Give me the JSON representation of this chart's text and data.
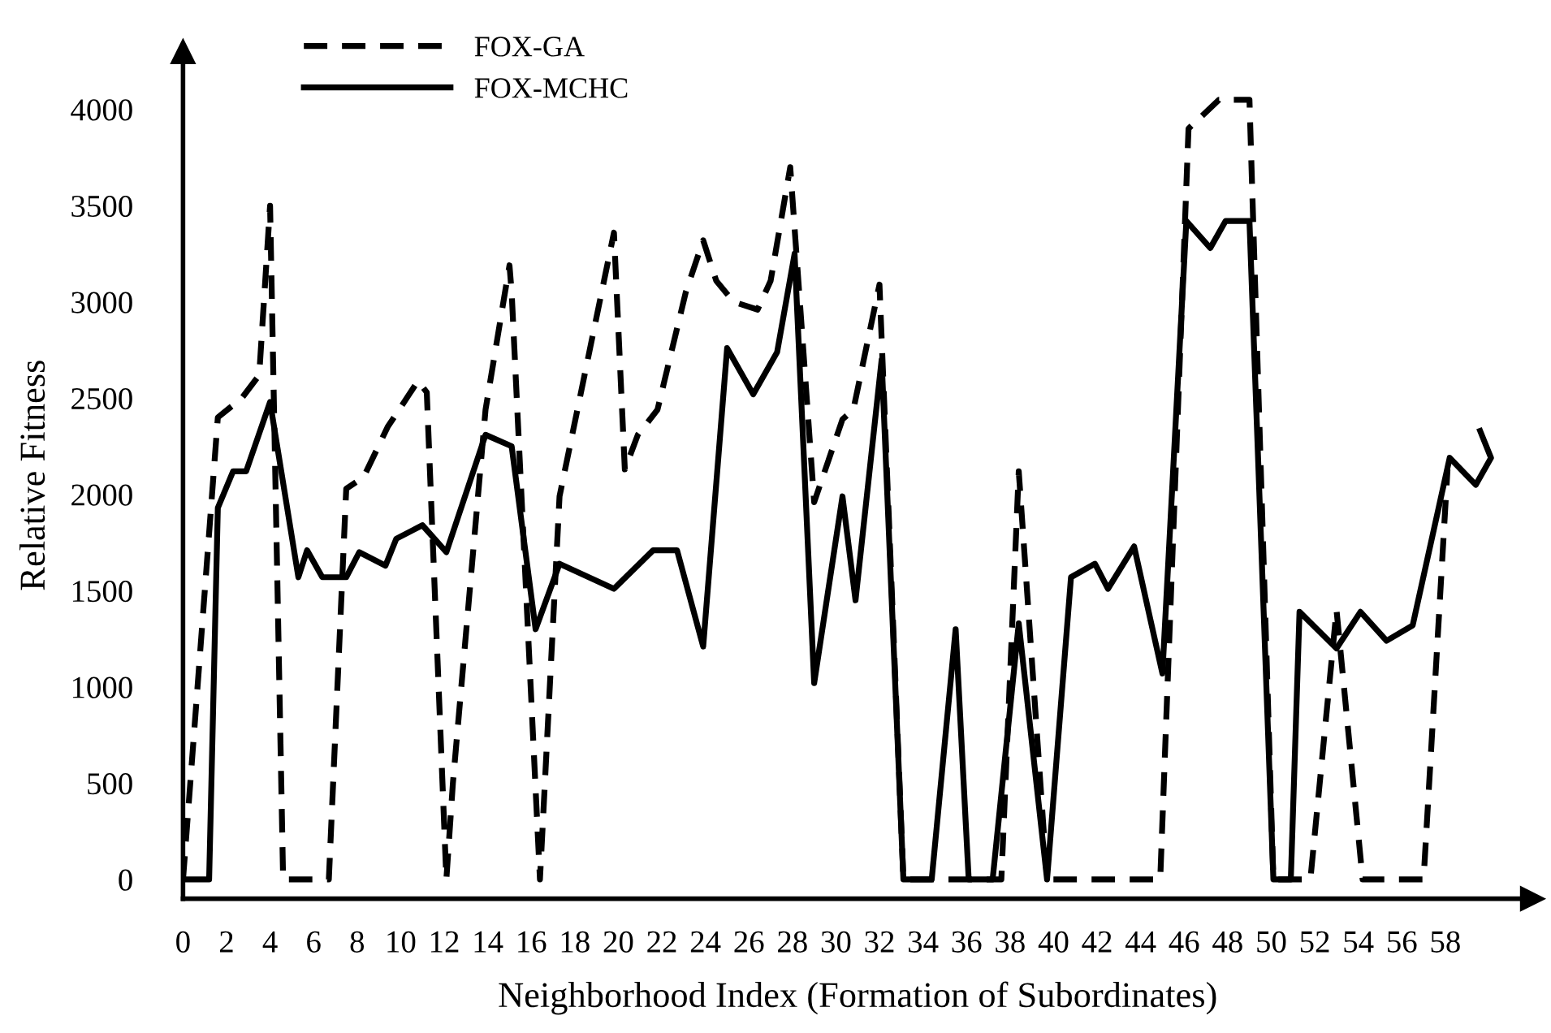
{
  "chart_data": {
    "type": "line",
    "xlabel": "Neighborhood Index (Formation of Subordinates)",
    "ylabel": "Relative Fitness",
    "xlim": [
      0,
      62
    ],
    "ylim": [
      -100,
      4300
    ],
    "xticks": [
      0,
      2,
      4,
      6,
      8,
      10,
      12,
      14,
      16,
      18,
      20,
      22,
      24,
      26,
      28,
      30,
      32,
      34,
      36,
      38,
      40,
      42,
      44,
      46,
      48,
      50,
      52,
      54,
      56,
      58
    ],
    "yticks": [
      0,
      500,
      1000,
      1500,
      2000,
      2500,
      3000,
      3500,
      4000
    ],
    "grid": false,
    "legend": "top left",
    "marker": "none",
    "series": [
      {
        "name": "FOX-GA",
        "color": "#000000",
        "line_style": "dashed",
        "x": [
          0,
          1.6,
          2.7,
          3.5,
          4.0,
          4.6,
          6.7,
          7.5,
          8.3,
          9.4,
          10.8,
          11.2,
          12.1,
          12.4,
          13.9,
          15.0,
          15.1,
          16.4,
          17.3,
          19.8,
          20.3,
          20.9,
          21.8,
          23.1,
          23.9,
          24.5,
          25.3,
          26.4,
          27.0,
          27.9,
          29.0,
          30.3,
          30.8,
          32.0,
          33.1,
          37.6,
          38.4,
          39.7,
          44.9,
          46.2,
          47.6,
          49.0,
          50.1,
          51.8,
          53.0,
          54.2,
          57.0,
          58.1
        ],
        "values": [
          0,
          2400,
          2500,
          2620,
          3500,
          0,
          0,
          2030,
          2090,
          2350,
          2590,
          2530,
          0,
          500,
          2440,
          3190,
          3050,
          0,
          1990,
          3360,
          2130,
          2310,
          2440,
          3050,
          3320,
          3110,
          3000,
          2960,
          3110,
          3700,
          1960,
          2390,
          2440,
          3090,
          0,
          0,
          2120,
          0,
          0,
          3900,
          4050,
          4050,
          0,
          0,
          1400,
          0,
          0,
          2130
        ]
      },
      {
        "name": "FOX-MCHC",
        "color": "#000000",
        "line_style": "solid",
        "x": [
          0,
          1.2,
          1.6,
          2.3,
          2.9,
          4.0,
          5.3,
          5.7,
          6.4,
          7.5,
          8.1,
          9.3,
          9.8,
          11.0,
          12.1,
          13.9,
          15.1,
          16.2,
          17.3,
          19.8,
          21.6,
          22.7,
          23.9,
          25.0,
          26.2,
          27.3,
          28.1,
          29.0,
          30.3,
          30.9,
          32.1,
          33.1,
          34.4,
          35.5,
          36.1,
          37.2,
          38.4,
          39.7,
          40.8,
          41.9,
          42.5,
          43.7,
          45.0,
          46.1,
          47.2,
          47.9,
          49.0,
          50.1,
          50.9,
          51.3,
          53.0,
          54.1,
          55.3,
          56.5,
          58.2,
          59.4,
          60.1,
          59.6
        ],
        "values": [
          0,
          0,
          1930,
          2120,
          2120,
          2480,
          1570,
          1710,
          1570,
          1570,
          1700,
          1630,
          1770,
          1840,
          1700,
          2310,
          2250,
          1300,
          1640,
          1510,
          1710,
          1710,
          1210,
          2760,
          2520,
          2740,
          3250,
          1020,
          1990,
          1450,
          2700,
          0,
          0,
          1300,
          0,
          0,
          1330,
          0,
          1570,
          1640,
          1510,
          1730,
          1070,
          3420,
          3280,
          3420,
          3420,
          0,
          0,
          1390,
          1200,
          1390,
          1240,
          1320,
          2190,
          2050,
          2190,
          2330
        ]
      }
    ]
  }
}
